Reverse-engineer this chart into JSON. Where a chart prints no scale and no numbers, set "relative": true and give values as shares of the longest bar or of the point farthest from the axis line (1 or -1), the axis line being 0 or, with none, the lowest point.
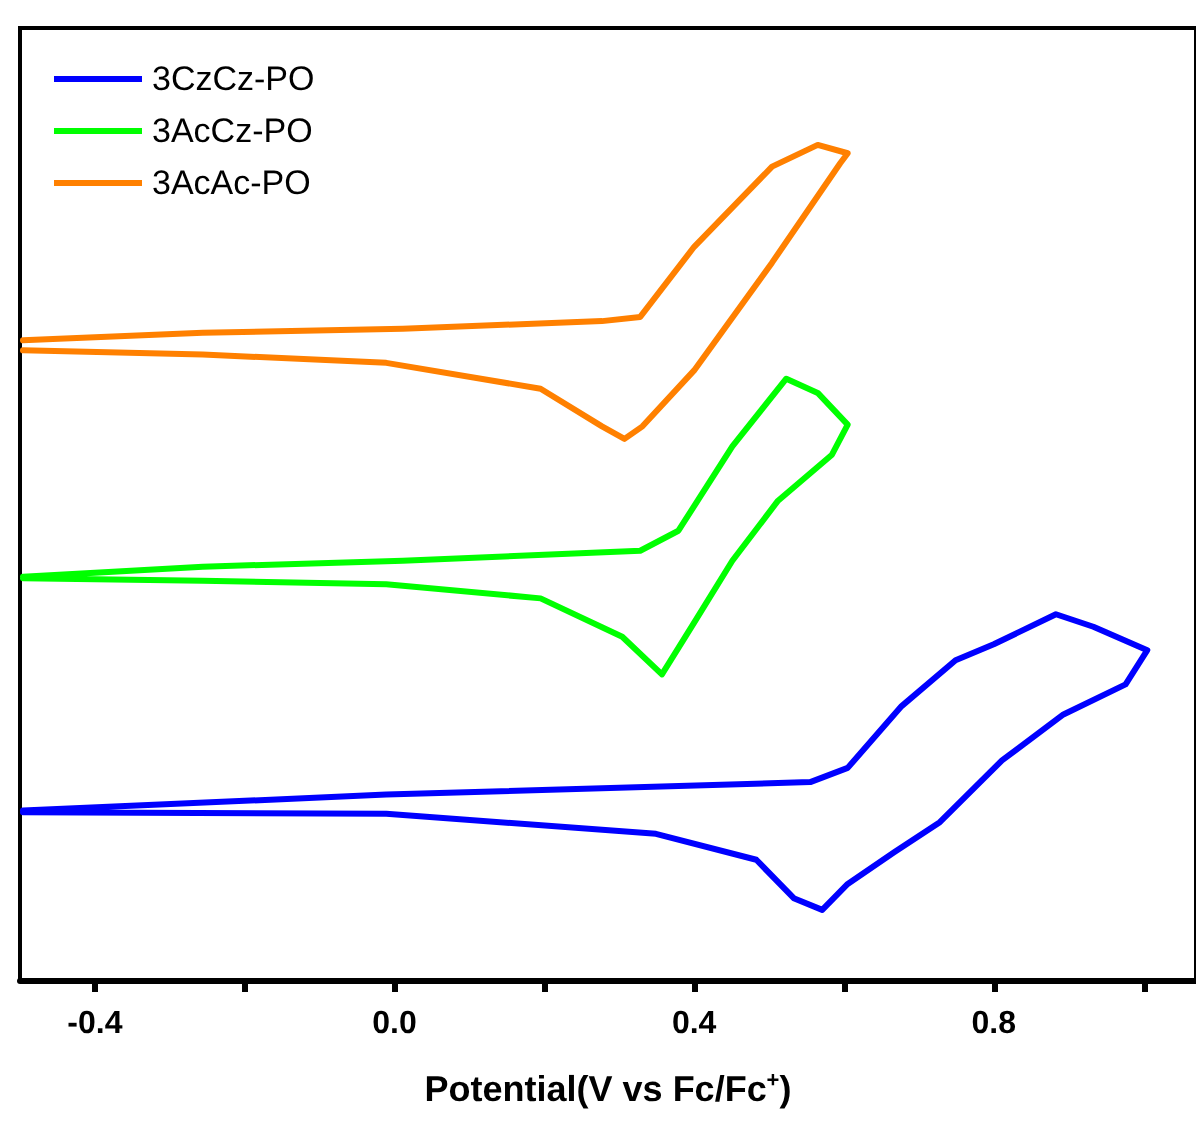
{
  "chart_data": {
    "type": "line",
    "relative": true,
    "xlabel": "Potential(V vs Fc/Fc$^{+}$)",
    "xlim": [
      -0.5,
      1.07
    ],
    "xticks": [
      {
        "value": -0.4,
        "label": "-0.4"
      },
      {
        "value": -0.2,
        "label": null
      },
      {
        "value": 0,
        "label": "0.0"
      },
      {
        "value": 0.2,
        "label": null
      },
      0.4,
      {
        "value": 0.6,
        "label": null
      },
      0.8,
      {
        "value": 1.0,
        "label": null
      }
    ],
    "tick_labels": "x",
    "legend": "top left",
    "grid": false,
    "marker": "none",
    "line_style": "solid",
    "series": [
      {
        "name": "3CzCz-PO",
        "color": "#0000ff",
        "x": [
          -0.496,
          -0.011,
          0.555,
          0.605,
          0.677,
          0.749,
          0.8,
          0.883,
          0.933,
          1.005,
          0.976,
          0.893,
          0.811,
          0.728,
          0.667,
          0.605,
          0.571,
          0.533,
          0.483,
          0.349,
          -0.011,
          -0.496
        ],
        "values": [
          0.203,
          0.222,
          0.237,
          0.254,
          0.328,
          0.383,
          0.402,
          0.438,
          0.423,
          0.395,
          0.354,
          0.318,
          0.263,
          0.189,
          0.153,
          0.115,
          0.084,
          0.098,
          0.144,
          0.175,
          0.199,
          0.201
        ]
      },
      {
        "name": "3AcCz-PO",
        "color": "#00ff00",
        "x": [
          -0.496,
          -0.256,
          0.011,
          0.328,
          0.379,
          0.451,
          0.523,
          0.565,
          0.605,
          0.584,
          0.512,
          0.451,
          0.4,
          0.357,
          0.304,
          0.195,
          -0.011,
          -0.256,
          -0.496
        ],
        "values": [
          0.483,
          0.495,
          0.502,
          0.514,
          0.538,
          0.639,
          0.72,
          0.703,
          0.665,
          0.629,
          0.574,
          0.502,
          0.428,
          0.366,
          0.411,
          0.457,
          0.474,
          0.478,
          0.481
        ]
      },
      {
        "name": "3AcAc-PO",
        "color": "#ff8000",
        "x": [
          -0.496,
          -0.256,
          0.011,
          0.277,
          0.328,
          0.4,
          0.504,
          0.565,
          0.605,
          0.595,
          0.504,
          0.4,
          0.331,
          0.307,
          0.277,
          0.195,
          -0.011,
          -0.256,
          -0.496
        ],
        "values": [
          0.766,
          0.775,
          0.78,
          0.789,
          0.794,
          0.878,
          0.974,
          1.0,
          0.99,
          0.978,
          0.859,
          0.73,
          0.663,
          0.648,
          0.663,
          0.708,
          0.739,
          0.749,
          0.754
        ]
      }
    ]
  }
}
